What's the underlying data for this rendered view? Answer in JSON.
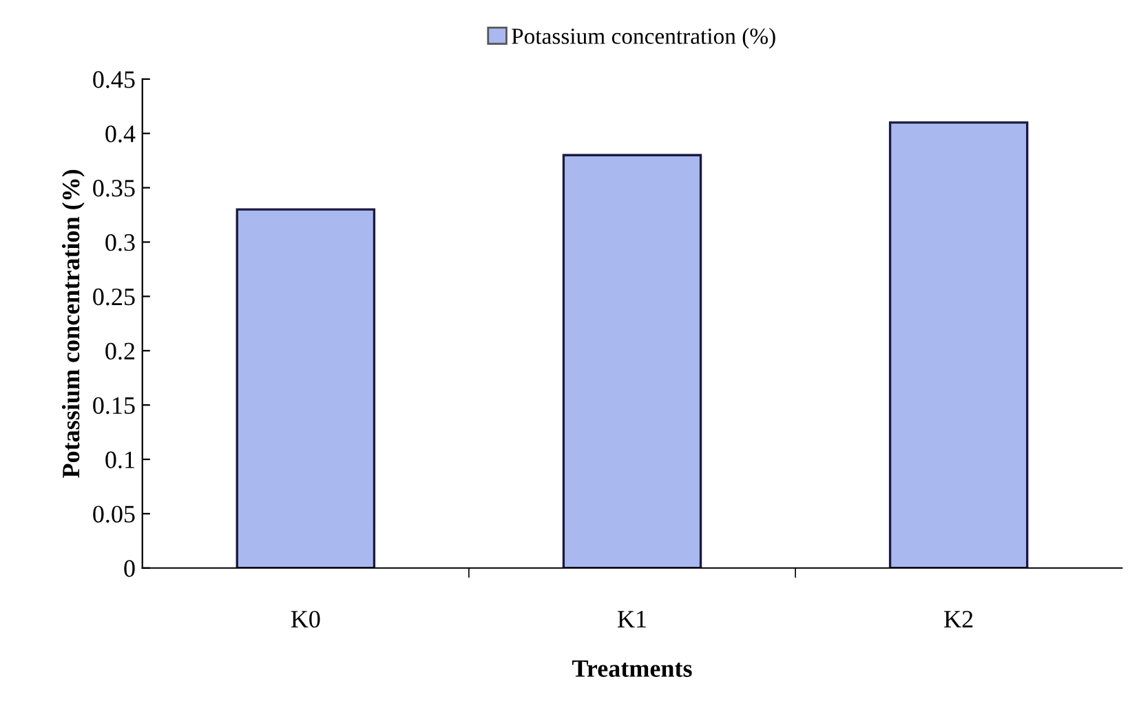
{
  "chart_data": {
    "type": "bar",
    "categories": [
      "K0",
      "K1",
      "K2"
    ],
    "xlabel": "Treatments",
    "ylabel": "Potassium concentration (%)",
    "series": [
      {
        "name": "Potassium concentration (%)",
        "color": "#a9b9f0",
        "values": [
          0.33,
          0.38,
          0.41
        ]
      }
    ],
    "ylim": [
      0,
      0.45
    ],
    "yticks": [
      0,
      0.05,
      0.1,
      0.15,
      0.2,
      0.25,
      0.3,
      0.35,
      0.4,
      0.45
    ],
    "grid": false,
    "legend": "top"
  }
}
